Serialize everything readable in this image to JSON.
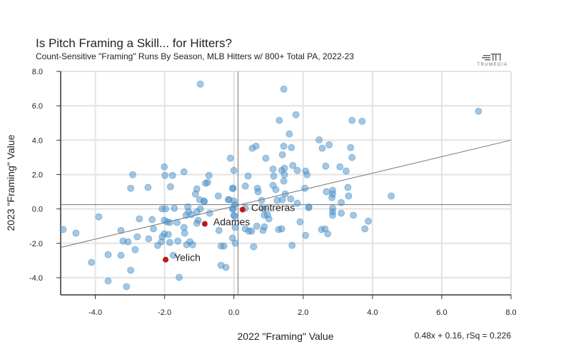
{
  "chart_data": {
    "type": "scatter",
    "title": "Is Pitch Framing a Skill... for Hitters?",
    "subtitle": "Count-Sensitive \"Framing\" Runs By Season, MLB Hitters w/ 800+ Total PA, 2022-23",
    "xlabel": "2022 \"Framing\" Value",
    "ylabel": "2023 \"Framing\" Value",
    "xlim": [
      -5,
      8
    ],
    "ylim": [
      -5,
      8
    ],
    "xticks": [
      -4,
      -2,
      0,
      2,
      4,
      6,
      8
    ],
    "yticks": [
      -4,
      -2,
      0,
      2,
      4,
      6,
      8
    ],
    "xtick_labels": [
      "-4.0",
      "-2.0",
      "0.0",
      "2.0",
      "4.0",
      "6.0",
      "8.0"
    ],
    "ytick_labels": [
      "-4.0",
      "-2.0",
      "0.0",
      "2.0",
      "4.0",
      "6.0",
      "8.0"
    ],
    "grid": true,
    "mean_lines": {
      "x": 0.12,
      "y": 0.25
    },
    "regression": {
      "slope": 0.48,
      "intercept": 0.16,
      "rsq": 0.226,
      "label": "0.48x + 0.16, rSq = 0.226"
    },
    "colors": {
      "points": "#4a90c8",
      "highlight": "#c0171b",
      "grid": "#e3e3e3",
      "lines": "#777777"
    },
    "points": [
      [
        -0.97,
        7.26
      ],
      [
        1.44,
        6.97
      ],
      [
        7.06,
        5.68
      ],
      [
        1.79,
        5.48
      ],
      [
        1.31,
        5.15
      ],
      [
        3.41,
        5.15
      ],
      [
        3.7,
        5.1
      ],
      [
        1.6,
        4.36
      ],
      [
        2.46,
        4.02
      ],
      [
        0.53,
        3.53
      ],
      [
        0.64,
        3.65
      ],
      [
        1.44,
        3.65
      ],
      [
        1.66,
        3.57
      ],
      [
        2.55,
        3.53
      ],
      [
        2.75,
        3.73
      ],
      [
        3.37,
        3.57
      ],
      [
        1.4,
        3.15
      ],
      [
        3.41,
        2.99
      ],
      [
        -0.1,
        2.95
      ],
      [
        0.92,
        2.95
      ],
      [
        0.0,
        2.24
      ],
      [
        1.13,
        2.32
      ],
      [
        1.38,
        2.24
      ],
      [
        1.46,
        2.37
      ],
      [
        1.7,
        2.53
      ],
      [
        1.83,
        2.24
      ],
      [
        2.07,
        2.2
      ],
      [
        2.11,
        1.99
      ],
      [
        2.65,
        2.49
      ],
      [
        3.06,
        2.45
      ],
      [
        3.24,
        2.2
      ],
      [
        0.41,
        1.91
      ],
      [
        1.15,
        1.91
      ],
      [
        1.46,
        1.99
      ],
      [
        1.44,
        1.62
      ],
      [
        -0.02,
        1.2
      ],
      [
        0.33,
        1.33
      ],
      [
        0.68,
        1.2
      ],
      [
        0.7,
        1.0
      ],
      [
        1.13,
        1.37
      ],
      [
        1.21,
        1.12
      ],
      [
        1.48,
        0.87
      ],
      [
        2.05,
        1.2
      ],
      [
        2.67,
        1.0
      ],
      [
        2.85,
        1.08
      ],
      [
        2.85,
        0.87
      ],
      [
        2.83,
        0.66
      ],
      [
        3.29,
        1.25
      ],
      [
        3.31,
        0.75
      ],
      [
        4.54,
        0.75
      ],
      [
        0.8,
        0.5
      ],
      [
        1.25,
        0.5
      ],
      [
        1.4,
        0.54
      ],
      [
        1.64,
        0.58
      ],
      [
        1.83,
        0.33
      ],
      [
        3.1,
        0.37
      ],
      [
        2.16,
        0.12
      ],
      [
        2.85,
        0.04
      ],
      [
        -0.14,
        0.54
      ],
      [
        0.0,
        0.46
      ],
      [
        -0.02,
        0.0
      ],
      [
        -2.01,
        2.45
      ],
      [
        -2.92,
        1.99
      ],
      [
        -1.99,
        1.95
      ],
      [
        -1.77,
        1.95
      ],
      [
        -1.44,
        2.16
      ],
      [
        -0.72,
        1.95
      ],
      [
        -0.82,
        1.49
      ],
      [
        -0.76,
        1.54
      ],
      [
        -0.04,
        1.2
      ],
      [
        -2.98,
        1.2
      ],
      [
        -2.48,
        1.25
      ],
      [
        -1.83,
        1.29
      ],
      [
        -1.07,
        1.16
      ],
      [
        -1.11,
        0.87
      ],
      [
        -0.45,
        0.75
      ],
      [
        -0.99,
        0.54
      ],
      [
        -0.86,
        0.46
      ],
      [
        -0.16,
        0.54
      ],
      [
        -2.07,
        0.0
      ],
      [
        -1.97,
        0.0
      ],
      [
        -1.72,
        0.04
      ],
      [
        -1.33,
        0.12
      ],
      [
        -0.97,
        0.0
      ],
      [
        -0.86,
        0.42
      ],
      [
        -1.31,
        -0.17
      ],
      [
        -1.23,
        -0.33
      ],
      [
        -1.38,
        -0.37
      ],
      [
        -1.07,
        -0.17
      ],
      [
        -0.7,
        -0.25
      ],
      [
        -1.07,
        -0.83
      ],
      [
        -1.03,
        -0.66
      ],
      [
        0.02,
        0.25
      ],
      [
        -0.04,
        0.0
      ],
      [
        0.0,
        -0.37
      ],
      [
        0.04,
        -1.08
      ],
      [
        -3.9,
        -0.46
      ],
      [
        -4.93,
        -1.2
      ],
      [
        -4.56,
        -1.41
      ],
      [
        -3.26,
        -1.25
      ],
      [
        -2.73,
        -0.58
      ],
      [
        -2.36,
        -0.62
      ],
      [
        -2.32,
        -1.16
      ],
      [
        -2.01,
        -0.66
      ],
      [
        -1.93,
        -0.75
      ],
      [
        -1.85,
        -0.79
      ],
      [
        -1.64,
        -0.79
      ],
      [
        -1.44,
        -1.08
      ],
      [
        -1.42,
        -1.41
      ],
      [
        -2.01,
        -1.45
      ],
      [
        -2.07,
        -1.62
      ],
      [
        -1.89,
        -1.49
      ],
      [
        -2.79,
        -1.62
      ],
      [
        -2.46,
        -1.74
      ],
      [
        -3.2,
        -1.87
      ],
      [
        -3.06,
        -1.91
      ],
      [
        -2.2,
        -2.12
      ],
      [
        -2.09,
        -1.91
      ],
      [
        -1.85,
        -1.95
      ],
      [
        -1.62,
        -1.87
      ],
      [
        -1.27,
        -1.91
      ],
      [
        -1.36,
        -2.08
      ],
      [
        -1.19,
        -2.08
      ],
      [
        -0.43,
        -1.25
      ],
      [
        -0.04,
        -1.7
      ],
      [
        0.04,
        -1.99
      ],
      [
        -0.37,
        -2.16
      ],
      [
        -0.29,
        -2.16
      ],
      [
        -2.85,
        -2.37
      ],
      [
        -3.63,
        -2.66
      ],
      [
        -3.26,
        -2.7
      ],
      [
        -4.11,
        -3.11
      ],
      [
        -1.75,
        -2.7
      ],
      [
        -2.98,
        -3.57
      ],
      [
        -0.37,
        -3.28
      ],
      [
        -0.23,
        -3.4
      ],
      [
        -1.58,
        -3.98
      ],
      [
        -3.63,
        -4.19
      ],
      [
        -3.1,
        -4.52
      ],
      [
        0.33,
        0.04
      ],
      [
        0.02,
        -0.42
      ],
      [
        0.86,
        0.0
      ],
      [
        0.88,
        -0.37
      ],
      [
        0.97,
        -0.33
      ],
      [
        1.01,
        -0.58
      ],
      [
        0.66,
        -1.0
      ],
      [
        0.88,
        -1.04
      ],
      [
        0.84,
        -1.25
      ],
      [
        0.33,
        -1.16
      ],
      [
        0.43,
        -1.29
      ],
      [
        0.51,
        -1.29
      ],
      [
        1.29,
        -1.2
      ],
      [
        1.38,
        -1.16
      ],
      [
        1.91,
        -0.75
      ],
      [
        2.07,
        -1.54
      ],
      [
        0.57,
        -2.2
      ],
      [
        1.68,
        -2.12
      ],
      [
        2.16,
        0.08
      ],
      [
        2.85,
        -0.17
      ],
      [
        2.85,
        -0.37
      ],
      [
        3.1,
        -0.25
      ],
      [
        3.45,
        -0.37
      ],
      [
        2.53,
        -1.2
      ],
      [
        2.63,
        -1.16
      ],
      [
        2.71,
        -1.45
      ],
      [
        3.88,
        -0.71
      ],
      [
        3.78,
        -1.16
      ]
    ],
    "highlighted": [
      {
        "name": "Contreras",
        "x": 0.25,
        "y": -0.04
      },
      {
        "name": "Adames",
        "x": -0.84,
        "y": -0.87
      },
      {
        "name": "Yelich",
        "x": -1.97,
        "y": -2.95
      }
    ]
  },
  "logo": {
    "text": "TRUMEDIA",
    "icon": "trumedia-logo-icon"
  }
}
